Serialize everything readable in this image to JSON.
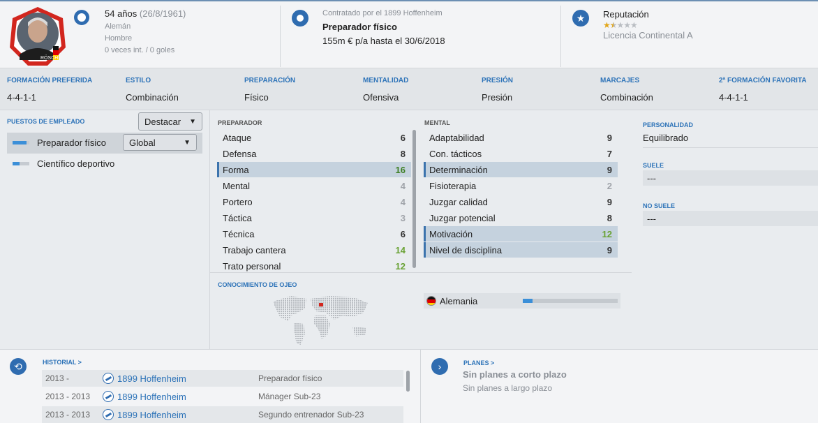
{
  "profile": {
    "age": "54 años",
    "dob": "(26/8/1961)",
    "nationality": "Alemán",
    "gender": "Hombre",
    "caps": "0 veces int. / 0 goles",
    "name_plate": "RÖSCH"
  },
  "contract": {
    "header": "Contratado por el 1899 Hoffenheim",
    "role": "Preparador físico",
    "salary": "155m € p/a hasta el 30/6/2018"
  },
  "reputation": {
    "label": "Reputación",
    "stars": 1.5,
    "max_stars": 5,
    "license": "Licencia Continental A"
  },
  "formation": [
    {
      "label": "FORMACIÓN PREFERIDA",
      "value": "4-4-1-1"
    },
    {
      "label": "ESTILO",
      "value": "Combinación"
    },
    {
      "label": "PREPARACIÓN",
      "value": "Físico"
    },
    {
      "label": "MENTALIDAD",
      "value": "Ofensiva"
    },
    {
      "label": "PRESIÓN",
      "value": "Presión"
    },
    {
      "label": "MARCAJES",
      "value": "Combinación"
    },
    {
      "label": "2ª FORMACIÓN FAVORITA",
      "value": "4-4-1-1"
    }
  ],
  "jobs": {
    "header": "PUESTOS DE EMPLEADO",
    "dropdown": "Destacar",
    "roles": [
      {
        "label": "Preparador físico",
        "level": 0.85,
        "select": "Global"
      },
      {
        "label": "Científico deportivo",
        "level": 0.4
      }
    ]
  },
  "coach_attrs": {
    "header": "PREPARADOR",
    "items": [
      {
        "label": "Ataque",
        "value": "6",
        "hl": false,
        "c": "n-dark"
      },
      {
        "label": "Defensa",
        "value": "8",
        "hl": false,
        "c": "n-dark"
      },
      {
        "label": "Forma",
        "value": "16",
        "hl": true,
        "c": "n-dgreen"
      },
      {
        "label": "Mental",
        "value": "4",
        "hl": false,
        "c": "n-grey"
      },
      {
        "label": "Portero",
        "value": "4",
        "hl": false,
        "c": "n-grey"
      },
      {
        "label": "Táctica",
        "value": "3",
        "hl": false,
        "c": "n-grey"
      },
      {
        "label": "Técnica",
        "value": "6",
        "hl": false,
        "c": "n-dark"
      },
      {
        "label": "Trabajo cantera",
        "value": "14",
        "hl": false,
        "c": "n-green"
      },
      {
        "label": "Trato personal",
        "value": "12",
        "hl": false,
        "c": "n-green"
      }
    ]
  },
  "mental_attrs": {
    "header": "MENTAL",
    "items": [
      {
        "label": "Adaptabilidad",
        "value": "9",
        "hl": false,
        "c": "n-dark"
      },
      {
        "label": "Con. tácticos",
        "value": "7",
        "hl": false,
        "c": "n-dark"
      },
      {
        "label": "Determinación",
        "value": "9",
        "hl": true,
        "c": "n-dark"
      },
      {
        "label": "Fisioterapia",
        "value": "2",
        "hl": false,
        "c": "n-grey"
      },
      {
        "label": "Juzgar calidad",
        "value": "9",
        "hl": false,
        "c": "n-dark"
      },
      {
        "label": "Juzgar potencial",
        "value": "8",
        "hl": false,
        "c": "n-dark"
      },
      {
        "label": "Motivación",
        "value": "12",
        "hl": true,
        "c": "n-green"
      },
      {
        "label": "Nivel de disciplina",
        "value": "9",
        "hl": true,
        "c": "n-dark"
      }
    ]
  },
  "scouting": {
    "header": "CONOCIMIENTO DE OJEO",
    "country": "Alemania",
    "level": 0.1
  },
  "personality": {
    "header": "PERSONALIDAD",
    "value": "Equilibrado",
    "suele_header": "SUELE",
    "suele": "---",
    "no_suele_header": "NO SUELE",
    "no_suele": "---"
  },
  "history": {
    "header": "HISTORIAL >",
    "rows": [
      {
        "years": "2013 -",
        "club": "1899 Hoffenheim",
        "role": "Preparador físico"
      },
      {
        "years": "2013 - 2013",
        "club": "1899 Hoffenheim",
        "role": "Mánager Sub-23"
      },
      {
        "years": "2013 - 2013",
        "club": "1899 Hoffenheim",
        "role": "Segundo entrenador Sub-23"
      }
    ]
  },
  "plans": {
    "header": "PLANES >",
    "short": "Sin planes a corto plazo",
    "long": "Sin planes a largo plazo"
  }
}
